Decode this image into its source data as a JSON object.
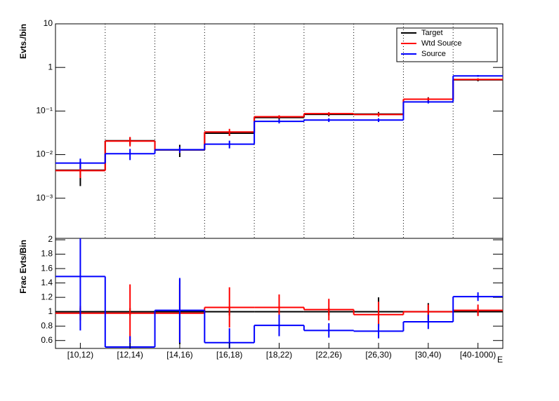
{
  "chart_data": [
    {
      "type": "step",
      "ylabel": "Evts./bin",
      "log": true,
      "grid": "x",
      "legend": "top-right",
      "ylim": [
        0.00012,
        10
      ],
      "yticks": [
        10,
        1,
        {
          "value": 0.1,
          "label": "10⁻¹"
        },
        {
          "value": 0.01,
          "label": "10⁻²"
        },
        {
          "value": 0.001,
          "label": "10⁻³"
        }
      ],
      "series": [
        {
          "name": "Target",
          "color": "#000000",
          "values": [
            0.0044,
            0.0208,
            0.0128,
            0.031,
            0.071,
            0.084,
            0.085,
            0.187,
            0.52
          ],
          "errors": [
            0.0025,
            0.004,
            0.004,
            0.004,
            0.007,
            0.008,
            0.01,
            0.02,
            0.04
          ]
        },
        {
          "name": "Wtd Source",
          "color": "#ff0000",
          "values": [
            0.0043,
            0.0204,
            0.0129,
            0.033,
            0.074,
            0.087,
            0.083,
            0.187,
            0.53
          ],
          "errors": [
            0.0014,
            0.005,
            0.002,
            0.006,
            0.006,
            0.007,
            0.008,
            0.015,
            0.03
          ]
        },
        {
          "name": "Source",
          "color": "#0000ff",
          "values": [
            0.0064,
            0.0105,
            0.013,
            0.0174,
            0.058,
            0.062,
            0.062,
            0.162,
            0.64
          ],
          "errors": [
            0.0017,
            0.003,
            0.002,
            0.0035,
            0.006,
            0.006,
            0.006,
            0.013,
            0.03
          ]
        }
      ]
    },
    {
      "type": "step",
      "ylabel": "Frac Evts/Bin",
      "xlabel": "E",
      "categories": [
        "[10,12)",
        "[12,14)",
        "[14,16)",
        "[16,18)",
        "[18,22)",
        "[22,26)",
        "[26,30)",
        "[30,40)",
        "[40-1000)"
      ],
      "ylim": [
        0.49,
        2.02
      ],
      "yticks": [
        0.6,
        0.8,
        1,
        1.2,
        1.4,
        1.6,
        1.8,
        2
      ],
      "series": [
        {
          "color": "#000000",
          "values": [
            1,
            1,
            1,
            1,
            1,
            1,
            1,
            1,
            1
          ],
          "errors": [
            0.05,
            0.05,
            0.45,
            0.05,
            0.05,
            0.05,
            0.2,
            0.12,
            0.05
          ]
        },
        {
          "color": "#ff0000",
          "values": [
            0.98,
            0.98,
            0.98,
            1.06,
            1.06,
            1.03,
            0.96,
            1.0,
            1.02
          ],
          "errors": [
            0.1,
            0.4,
            0.4,
            0.28,
            0.18,
            0.15,
            0.18,
            0.1,
            0.08
          ]
        },
        {
          "color": "#0000ff",
          "values": [
            1.49,
            0.51,
            1.02,
            0.57,
            0.81,
            0.74,
            0.73,
            0.86,
            1.21
          ],
          "errors": [
            0.75,
            0.15,
            0.45,
            0.2,
            0.15,
            0.1,
            0.1,
            0.1,
            0.06
          ]
        }
      ]
    }
  ]
}
